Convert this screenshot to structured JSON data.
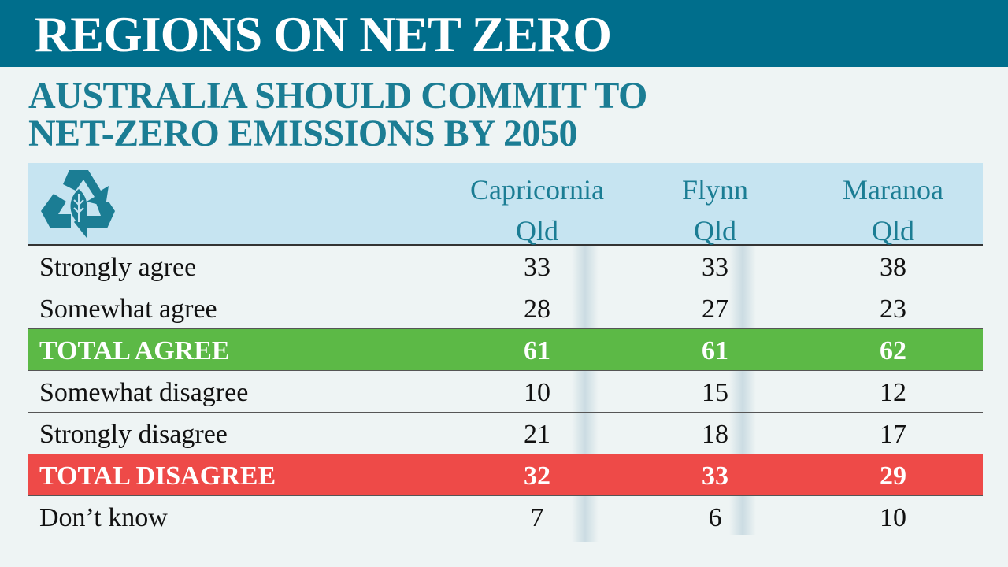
{
  "header": {
    "title": "REGIONS ON NET ZERO"
  },
  "subtitle": [
    "AUSTRALIA SHOULD COMMIT TO",
    "NET-ZERO EMISSIONS BY 2050"
  ],
  "table": {
    "columns": [
      [
        "Capricornia",
        "Qld"
      ],
      [
        "Flynn",
        "Qld"
      ],
      [
        "Maranoa",
        "Qld"
      ]
    ],
    "rows": [
      {
        "label": "Strongly agree",
        "values": [
          33,
          33,
          38
        ]
      },
      {
        "label": "Somewhat agree",
        "values": [
          28,
          27,
          23
        ]
      },
      {
        "label": "TOTAL AGREE",
        "values": [
          61,
          61,
          62
        ],
        "style": "agree"
      },
      {
        "label": "Somewhat disagree",
        "values": [
          10,
          15,
          12
        ]
      },
      {
        "label": "Strongly disagree",
        "values": [
          21,
          18,
          17
        ]
      },
      {
        "label": "TOTAL DISAGREE",
        "values": [
          32,
          33,
          29
        ],
        "style": "disagree"
      },
      {
        "label": "Don’t know",
        "values": [
          7,
          6,
          10
        ]
      }
    ]
  }
}
